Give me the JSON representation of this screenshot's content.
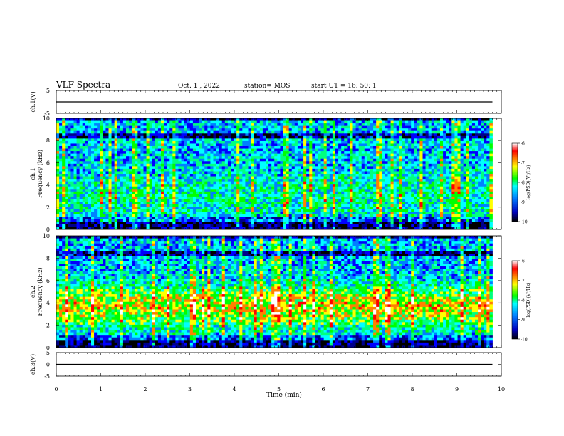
{
  "header": {
    "title": "VLF Spectra",
    "date": "Oct. 1 , 2022",
    "station": "station= MOS",
    "start": "start UT = 16: 50: 1"
  },
  "chart_data": [
    {
      "type": "line",
      "ylabel": "ch.1(V)",
      "xlim": [
        0,
        10
      ],
      "ylim": [
        -5,
        5
      ],
      "yticks": [
        5,
        -5
      ],
      "series": [
        {
          "x": [
            0,
            9.8
          ],
          "values": [
            0,
            0
          ]
        }
      ]
    },
    {
      "type": "heatmap",
      "ylabel": "ch.1\nFrequency (kHz)",
      "xlim": [
        0,
        10
      ],
      "ylim": [
        0,
        10
      ],
      "yticks": [
        0,
        2,
        4,
        6,
        8,
        10
      ],
      "data_x_end": 9.8,
      "colorbar": {
        "label": "log(PSD)(V²/Hz)",
        "range": [
          -10,
          -6
        ],
        "ticks": [
          -6,
          -7,
          -8,
          -9,
          -10
        ]
      }
    },
    {
      "type": "heatmap",
      "ylabel": "ch.2\nFrequency (kHz)",
      "xlim": [
        0,
        10
      ],
      "ylim": [
        0,
        10
      ],
      "yticks": [
        0,
        2,
        4,
        6,
        8,
        10
      ],
      "data_x_end": 9.8,
      "colorbar": {
        "label": "log(PSD)(V²/Hz)",
        "range": [
          -10,
          -6
        ],
        "ticks": [
          -6,
          -7,
          -8,
          -9,
          -10
        ]
      }
    },
    {
      "type": "line",
      "ylabel": "ch.3(V)",
      "xlabel": "Time (min)",
      "xlim": [
        0,
        10
      ],
      "ylim": [
        -5,
        5
      ],
      "yticks": [
        5,
        0,
        -5
      ],
      "xticks": [
        0,
        1,
        2,
        3,
        4,
        5,
        6,
        7,
        8,
        9,
        10
      ],
      "series": [
        {
          "x": [
            0,
            9.8
          ],
          "values": [
            0,
            0
          ]
        }
      ]
    }
  ],
  "colormap": [
    "#000000",
    "#00008b",
    "#0000ff",
    "#0080ff",
    "#00ffff",
    "#00ff80",
    "#00ff00",
    "#ffff00",
    "#ff8000",
    "#ff0000",
    "#ffffff"
  ]
}
